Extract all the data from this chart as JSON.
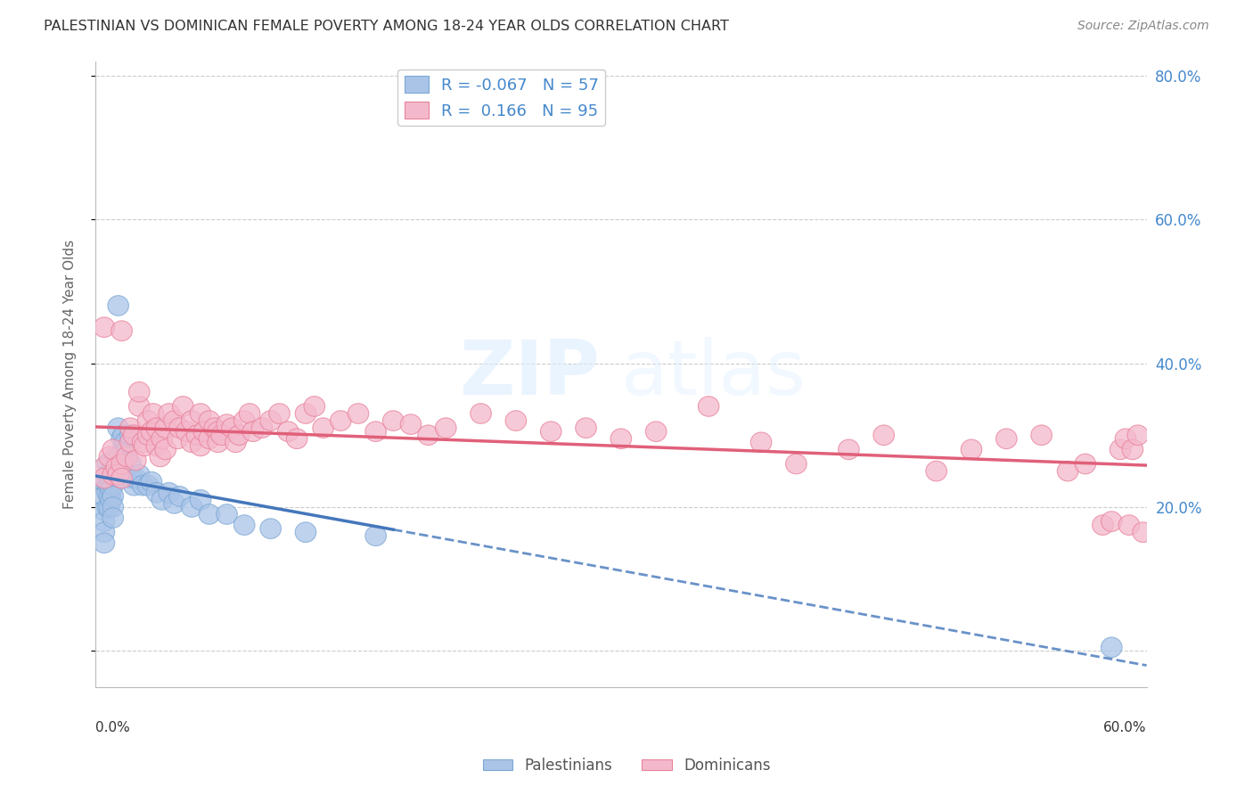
{
  "title": "PALESTINIAN VS DOMINICAN FEMALE POVERTY AMONG 18-24 YEAR OLDS CORRELATION CHART",
  "source": "Source: ZipAtlas.com",
  "ylabel": "Female Poverty Among 18-24 Year Olds",
  "xlim": [
    0,
    0.6
  ],
  "ylim": [
    -0.05,
    0.82
  ],
  "yticks": [
    0.0,
    0.2,
    0.4,
    0.6,
    0.8
  ],
  "ytick_labels_right": [
    "",
    "20.0%",
    "40.0%",
    "60.0%",
    "80.0%"
  ],
  "pal_color": "#aac4e8",
  "dom_color": "#f4b8cc",
  "pal_edge_color": "#7ba8d4",
  "dom_edge_color": "#e8829a",
  "pal_line_color": "#4477bb",
  "dom_line_color": "#e0607a",
  "background_color": "#ffffff",
  "grid_color": "#cccccc",
  "title_color": "#333333",
  "source_color": "#888888",
  "tick_label_color": "#4488cc",
  "palestinians_x": [
    0.005,
    0.005,
    0.005,
    0.005,
    0.005,
    0.005,
    0.007,
    0.007,
    0.007,
    0.007,
    0.007,
    0.008,
    0.008,
    0.008,
    0.008,
    0.009,
    0.009,
    0.009,
    0.01,
    0.01,
    0.01,
    0.01,
    0.01,
    0.01,
    0.012,
    0.013,
    0.013,
    0.015,
    0.015,
    0.015,
    0.016,
    0.017,
    0.017,
    0.018,
    0.02,
    0.02,
    0.021,
    0.022,
    0.023,
    0.025,
    0.027,
    0.03,
    0.032,
    0.035,
    0.038,
    0.042,
    0.045,
    0.048,
    0.055,
    0.06,
    0.065,
    0.075,
    0.085,
    0.1,
    0.12,
    0.16,
    0.58
  ],
  "palestinians_y": [
    0.235,
    0.215,
    0.195,
    0.18,
    0.165,
    0.15,
    0.26,
    0.245,
    0.23,
    0.22,
    0.2,
    0.245,
    0.23,
    0.215,
    0.2,
    0.24,
    0.225,
    0.21,
    0.26,
    0.245,
    0.23,
    0.215,
    0.2,
    0.185,
    0.27,
    0.48,
    0.31,
    0.295,
    0.275,
    0.25,
    0.3,
    0.29,
    0.275,
    0.28,
    0.3,
    0.26,
    0.24,
    0.23,
    0.24,
    0.245,
    0.23,
    0.23,
    0.235,
    0.22,
    0.21,
    0.22,
    0.205,
    0.215,
    0.2,
    0.21,
    0.19,
    0.19,
    0.175,
    0.17,
    0.165,
    0.16,
    0.005
  ],
  "dominicans_x": [
    0.005,
    0.005,
    0.005,
    0.008,
    0.01,
    0.01,
    0.012,
    0.013,
    0.015,
    0.015,
    0.015,
    0.018,
    0.02,
    0.02,
    0.022,
    0.023,
    0.025,
    0.025,
    0.027,
    0.028,
    0.03,
    0.03,
    0.032,
    0.033,
    0.035,
    0.035,
    0.037,
    0.038,
    0.04,
    0.04,
    0.042,
    0.045,
    0.047,
    0.048,
    0.05,
    0.052,
    0.055,
    0.055,
    0.058,
    0.06,
    0.06,
    0.062,
    0.065,
    0.065,
    0.068,
    0.07,
    0.07,
    0.072,
    0.075,
    0.078,
    0.08,
    0.082,
    0.085,
    0.088,
    0.09,
    0.095,
    0.1,
    0.105,
    0.11,
    0.115,
    0.12,
    0.125,
    0.13,
    0.14,
    0.15,
    0.16,
    0.17,
    0.18,
    0.19,
    0.2,
    0.22,
    0.24,
    0.26,
    0.28,
    0.3,
    0.32,
    0.35,
    0.38,
    0.4,
    0.43,
    0.45,
    0.48,
    0.5,
    0.52,
    0.54,
    0.555,
    0.565,
    0.575,
    0.58,
    0.585,
    0.588,
    0.59,
    0.592,
    0.595,
    0.598
  ],
  "dominicans_y": [
    0.255,
    0.24,
    0.45,
    0.27,
    0.245,
    0.28,
    0.255,
    0.245,
    0.26,
    0.445,
    0.24,
    0.27,
    0.29,
    0.31,
    0.3,
    0.265,
    0.34,
    0.36,
    0.29,
    0.285,
    0.32,
    0.3,
    0.305,
    0.33,
    0.285,
    0.31,
    0.27,
    0.295,
    0.31,
    0.28,
    0.33,
    0.32,
    0.295,
    0.31,
    0.34,
    0.305,
    0.29,
    0.32,
    0.3,
    0.33,
    0.285,
    0.305,
    0.32,
    0.295,
    0.31,
    0.305,
    0.29,
    0.3,
    0.315,
    0.31,
    0.29,
    0.3,
    0.32,
    0.33,
    0.305,
    0.31,
    0.32,
    0.33,
    0.305,
    0.295,
    0.33,
    0.34,
    0.31,
    0.32,
    0.33,
    0.305,
    0.32,
    0.315,
    0.3,
    0.31,
    0.33,
    0.32,
    0.305,
    0.31,
    0.295,
    0.305,
    0.34,
    0.29,
    0.26,
    0.28,
    0.3,
    0.25,
    0.28,
    0.295,
    0.3,
    0.25,
    0.26,
    0.175,
    0.18,
    0.28,
    0.295,
    0.175,
    0.28,
    0.3,
    0.165
  ]
}
